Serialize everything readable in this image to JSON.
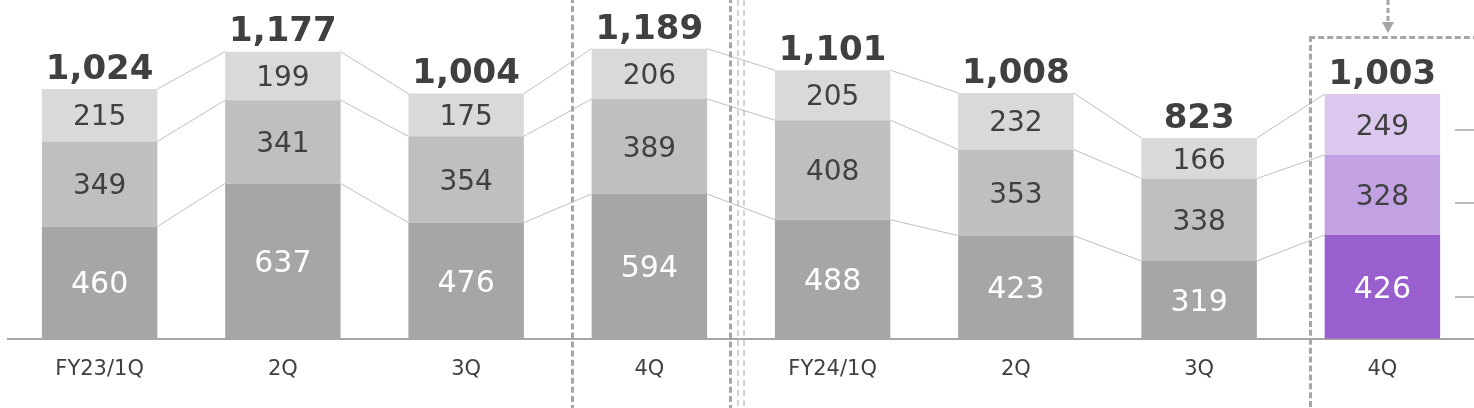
{
  "chart_data": {
    "type": "bar",
    "stacked": true,
    "data_labels": true,
    "grid": false,
    "legend": false,
    "tick_labels": "x",
    "categories": [
      "FY23/1Q",
      "2Q",
      "3Q",
      "4Q",
      "FY24/1Q",
      "2Q",
      "3Q",
      "4Q"
    ],
    "series": [
      {
        "colors": [
          "#a6a6a6",
          "#a6a6a6",
          "#a6a6a6",
          "#a6a6a6",
          "#a6a6a6",
          "#a6a6a6",
          "#a6a6a6",
          "#9a5fce"
        ],
        "values": [
          460,
          637,
          476,
          594,
          488,
          423,
          319,
          426
        ]
      },
      {
        "colors": [
          "#bfbfbf",
          "#bfbfbf",
          "#bfbfbf",
          "#bfbfbf",
          "#bfbfbf",
          "#bfbfbf",
          "#bfbfbf",
          "#c3a2e4"
        ],
        "values": [
          349,
          341,
          354,
          389,
          408,
          353,
          338,
          328
        ]
      },
      {
        "colors": [
          "#d9d9d9",
          "#d9d9d9",
          "#d9d9d9",
          "#d9d9d9",
          "#d9d9d9",
          "#d9d9d9",
          "#d9d9d9",
          "#dcc8ef"
        ],
        "values": [
          215,
          199,
          175,
          206,
          205,
          232,
          166,
          249
        ]
      }
    ],
    "totals": [
      "1,024",
      "1,177",
      "1,004",
      "1,189",
      "1,101",
      "1,008",
      "823",
      "1,003"
    ]
  }
}
